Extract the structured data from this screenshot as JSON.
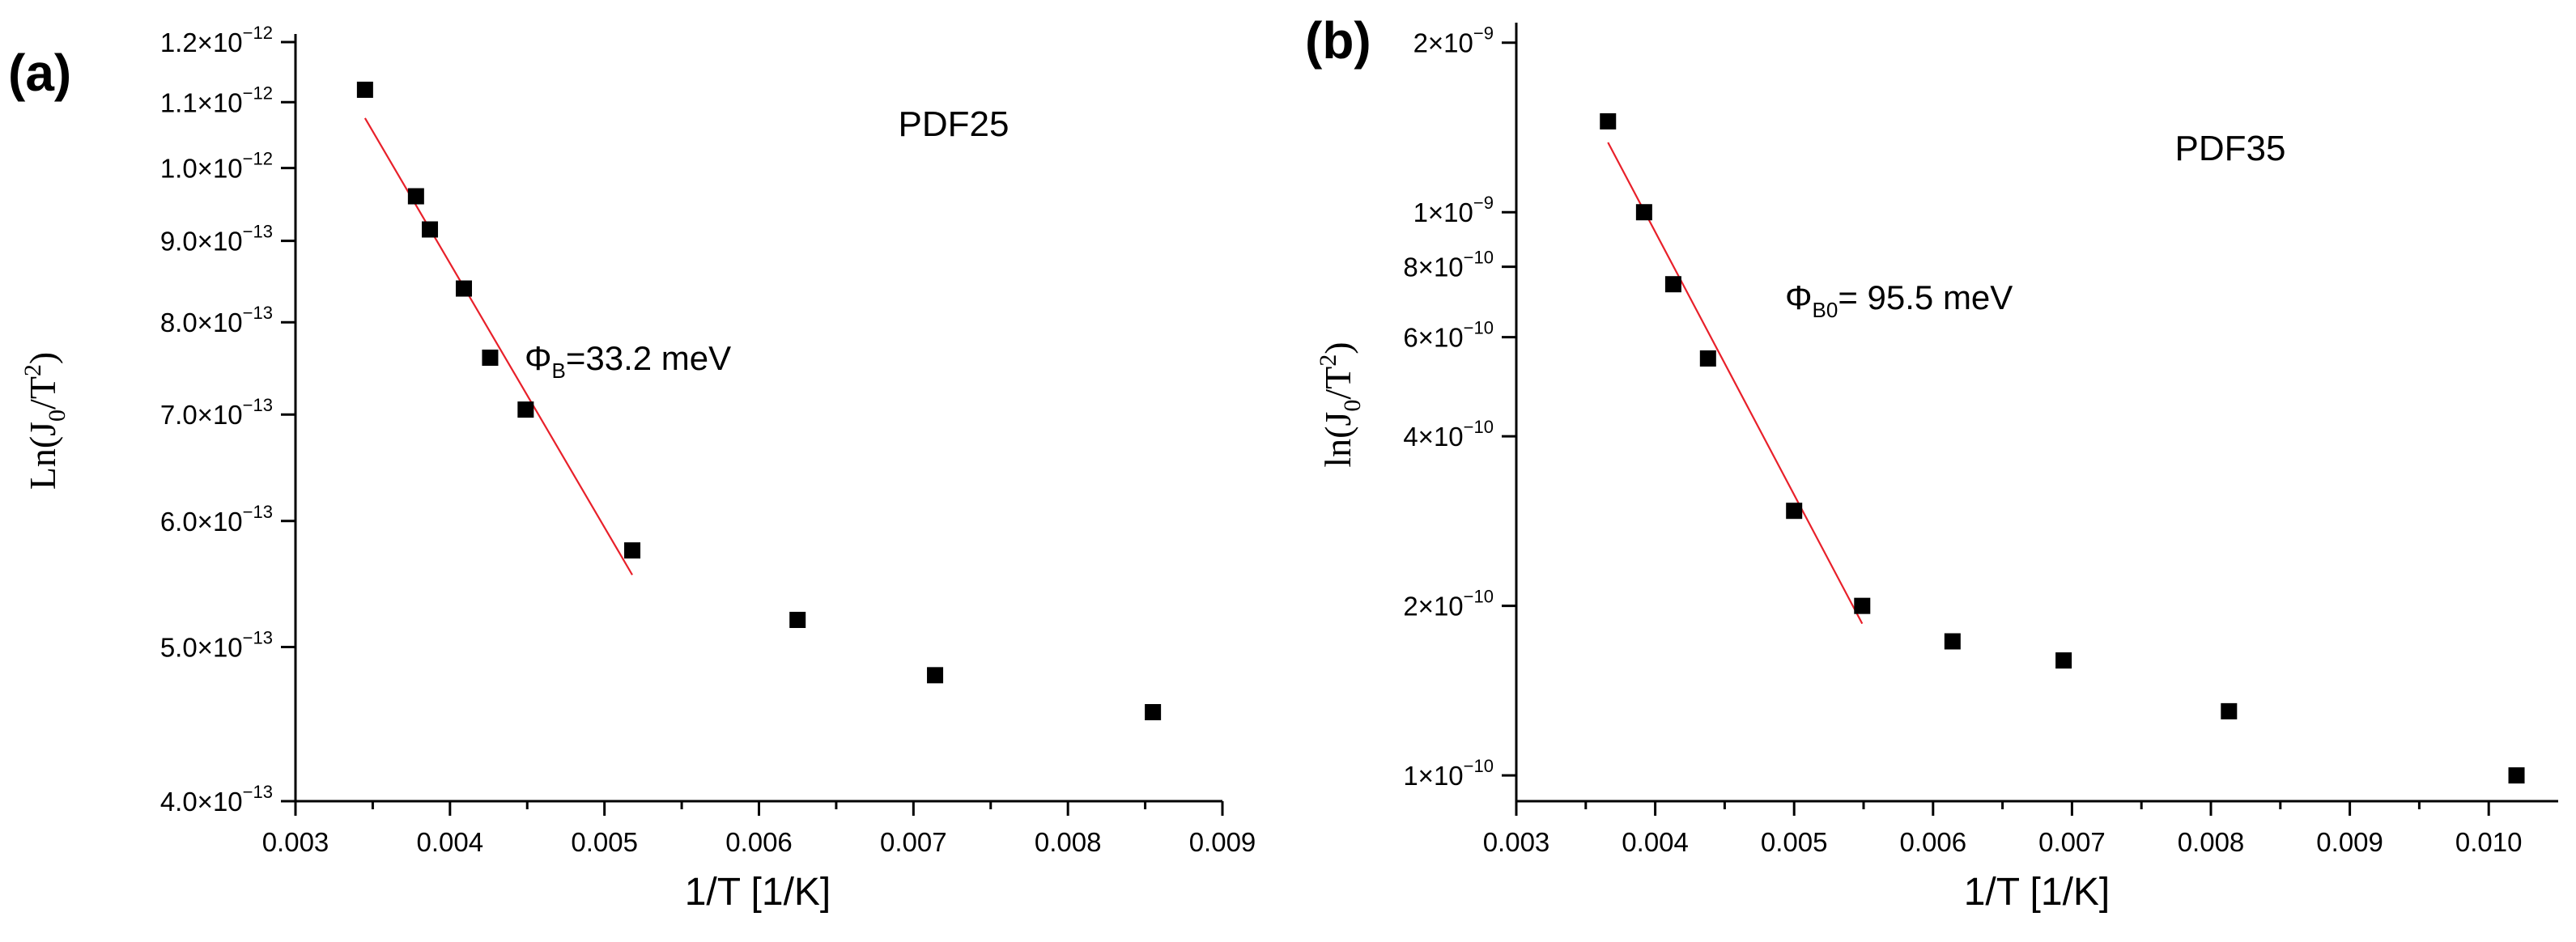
{
  "chart_data": [
    {
      "type": "scatter",
      "panel_label": "(a)",
      "sample": "PDF25",
      "annotation": {
        "symbol": "Φ",
        "sub": "B",
        "text": "=33.2 meV"
      },
      "xlabel": "1/T [1/K]",
      "ylabel": {
        "prefix": "Ln(J",
        "sub": "0",
        "mid": "/T",
        "sup": "2",
        "suffix": ")"
      },
      "yscale": "log",
      "xlim": [
        0.003,
        0.009
      ],
      "ylim": [
        4e-13,
        1.2e-12
      ],
      "xticks": [
        {
          "v": 0.003,
          "label": "0.003"
        },
        {
          "v": 0.004,
          "label": "0.004"
        },
        {
          "v": 0.005,
          "label": "0.005"
        },
        {
          "v": 0.006,
          "label": "0.006"
        },
        {
          "v": 0.007,
          "label": "0.007"
        },
        {
          "v": 0.008,
          "label": "0.008"
        },
        {
          "v": 0.009,
          "label": "0.009"
        }
      ],
      "yticks": [
        {
          "v": 4e-13,
          "mant": "4.0",
          "exp": "−13"
        },
        {
          "v": 5e-13,
          "mant": "5.0",
          "exp": "−13"
        },
        {
          "v": 6e-13,
          "mant": "6.0",
          "exp": "−13"
        },
        {
          "v": 7e-13,
          "mant": "7.0",
          "exp": "−13"
        },
        {
          "v": 8e-13,
          "mant": "8.0",
          "exp": "−13"
        },
        {
          "v": 9e-13,
          "mant": "9.0",
          "exp": "−13"
        },
        {
          "v": 1e-12,
          "mant": "1.0",
          "exp": "−12"
        },
        {
          "v": 1.1e-12,
          "mant": "1.1",
          "exp": "−12"
        },
        {
          "v": 1.2e-12,
          "mant": "1.2",
          "exp": "−12"
        }
      ],
      "points": [
        {
          "x": 0.00345,
          "y": 1.12e-12
        },
        {
          "x": 0.00378,
          "y": 9.6e-13
        },
        {
          "x": 0.00387,
          "y": 9.15e-13
        },
        {
          "x": 0.00409,
          "y": 8.4e-13
        },
        {
          "x": 0.00426,
          "y": 7.6e-13
        },
        {
          "x": 0.00449,
          "y": 7.05e-13
        },
        {
          "x": 0.00518,
          "y": 5.75e-13
        },
        {
          "x": 0.00625,
          "y": 5.2e-13
        },
        {
          "x": 0.00714,
          "y": 4.8e-13
        },
        {
          "x": 0.00855,
          "y": 4.55e-13
        }
      ],
      "fit_line": {
        "x": [
          0.00345,
          0.00518
        ],
        "y": [
          1.075e-12,
          5.55e-13
        ],
        "color": "#e8202a"
      },
      "marker_color": "#000000"
    },
    {
      "type": "scatter",
      "panel_label": "(b)",
      "sample": "PDF35",
      "annotation": {
        "symbol": "Φ",
        "sub": "B0",
        "text": "= 95.5 meV"
      },
      "xlabel": "1/T [1/K]",
      "ylabel": {
        "prefix": "ln(J",
        "sub": "0",
        "mid": "/T",
        "sup": "2",
        "suffix": ")"
      },
      "yscale": "log",
      "xlim": [
        0.003,
        0.0105
      ],
      "ylim": [
        9e-11,
        2.1e-09
      ],
      "xticks": [
        {
          "v": 0.003,
          "label": "0.003"
        },
        {
          "v": 0.004,
          "label": "0.004"
        },
        {
          "v": 0.005,
          "label": "0.005"
        },
        {
          "v": 0.006,
          "label": "0.006"
        },
        {
          "v": 0.007,
          "label": "0.007"
        },
        {
          "v": 0.008,
          "label": "0.008"
        },
        {
          "v": 0.009,
          "label": "0.009"
        },
        {
          "v": 0.01,
          "label": "0.010"
        }
      ],
      "yticks": [
        {
          "v": 1e-10,
          "mant": "1",
          "exp": "−10"
        },
        {
          "v": 2e-10,
          "mant": "2",
          "exp": "−10"
        },
        {
          "v": 4e-10,
          "mant": "4",
          "exp": "−10"
        },
        {
          "v": 6e-10,
          "mant": "6",
          "exp": "−10"
        },
        {
          "v": 8e-10,
          "mant": "8",
          "exp": "−10"
        },
        {
          "v": 1e-09,
          "mant": "1",
          "exp": "−9"
        },
        {
          "v": 2e-09,
          "mant": "2",
          "exp": "−9"
        }
      ],
      "points": [
        {
          "x": 0.00366,
          "y": 1.45e-09
        },
        {
          "x": 0.00392,
          "y": 1e-09
        },
        {
          "x": 0.00413,
          "y": 7.45e-10
        },
        {
          "x": 0.00438,
          "y": 5.5e-10
        },
        {
          "x": 0.005,
          "y": 2.95e-10
        },
        {
          "x": 0.00549,
          "y": 2e-10
        },
        {
          "x": 0.00614,
          "y": 1.73e-10
        },
        {
          "x": 0.00694,
          "y": 1.6e-10
        },
        {
          "x": 0.00813,
          "y": 1.3e-10
        },
        {
          "x": 0.0102,
          "y": 1e-10
        }
      ],
      "fit_line": {
        "x": [
          0.00366,
          0.00549
        ],
        "y": [
          1.33e-09,
          1.86e-10
        ],
        "color": "#e8202a"
      },
      "marker_color": "#000000"
    }
  ]
}
